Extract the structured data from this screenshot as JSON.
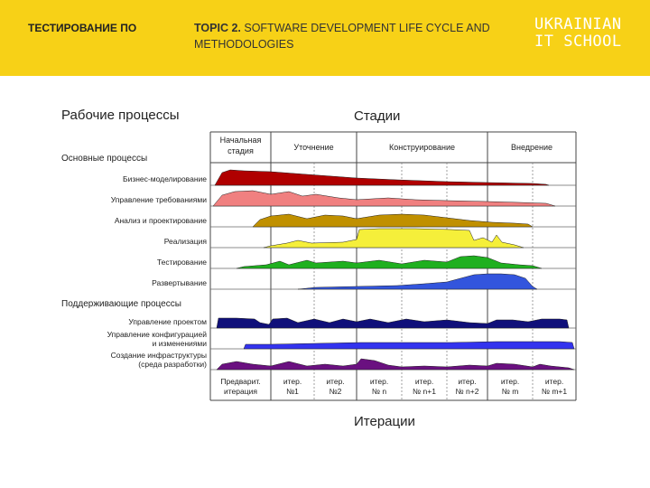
{
  "header": {
    "course": "ТЕСТИРОВАНИЕ ПО",
    "topic_prefix": "TOPIC 2.",
    "topic_rest": "SOFTWARE DEVELOPMENT LIFE CYCLE AND METHODOLOGIES",
    "logo_line1": "UKRAINIAN",
    "logo_line2": "IT SCHOOL"
  },
  "diagram": {
    "workflows_title": "Рабочие процессы",
    "stages_title": "Стадии",
    "iterations_title": "Итерации",
    "core_title": "Основные процессы",
    "support_title": "Поддерживающие процессы",
    "phases": [
      {
        "line1": "Начальная",
        "line2": "стадия"
      },
      {
        "line1": "Уточнение",
        "line2": ""
      },
      {
        "line1": "Конструирование",
        "line2": ""
      },
      {
        "line1": "Внедрение",
        "line2": ""
      }
    ],
    "workflows": [
      {
        "label": "Бизнес-моделирование",
        "label2": "",
        "color": "#b00000"
      },
      {
        "label": "Управление требованиями",
        "label2": "",
        "color": "#f08080"
      },
      {
        "label": "Анализ и проектирование",
        "label2": "",
        "color": "#c09000"
      },
      {
        "label": "Реализация",
        "label2": "",
        "color": "#f5ef3a"
      },
      {
        "label": "Тестирование",
        "label2": "",
        "color": "#1fb01f"
      },
      {
        "label": "Развертывание",
        "label2": "",
        "color": "#3355dd"
      },
      {
        "label": "Управление проектом",
        "label2": "",
        "color": "#10107a"
      },
      {
        "label": "Управление конфигурацией",
        "label2": "и изменениями",
        "color": "#3333ee"
      },
      {
        "label": "Создание инфраструктуры",
        "label2": "(среда разработки)",
        "color": "#6a1080"
      }
    ],
    "iterations": [
      {
        "line1": "Предварит.",
        "line2": "итерация"
      },
      {
        "line1": "итер.",
        "line2": "№1"
      },
      {
        "line1": "итер.",
        "line2": "№2"
      },
      {
        "line1": "итер.",
        "line2": "№ n"
      },
      {
        "line1": "итер.",
        "line2": "№ n+1"
      },
      {
        "line1": "итер.",
        "line2": "№ n+2"
      },
      {
        "line1": "итер.",
        "line2": "№ m"
      },
      {
        "line1": "итер.",
        "line2": "№ m+1"
      }
    ]
  }
}
